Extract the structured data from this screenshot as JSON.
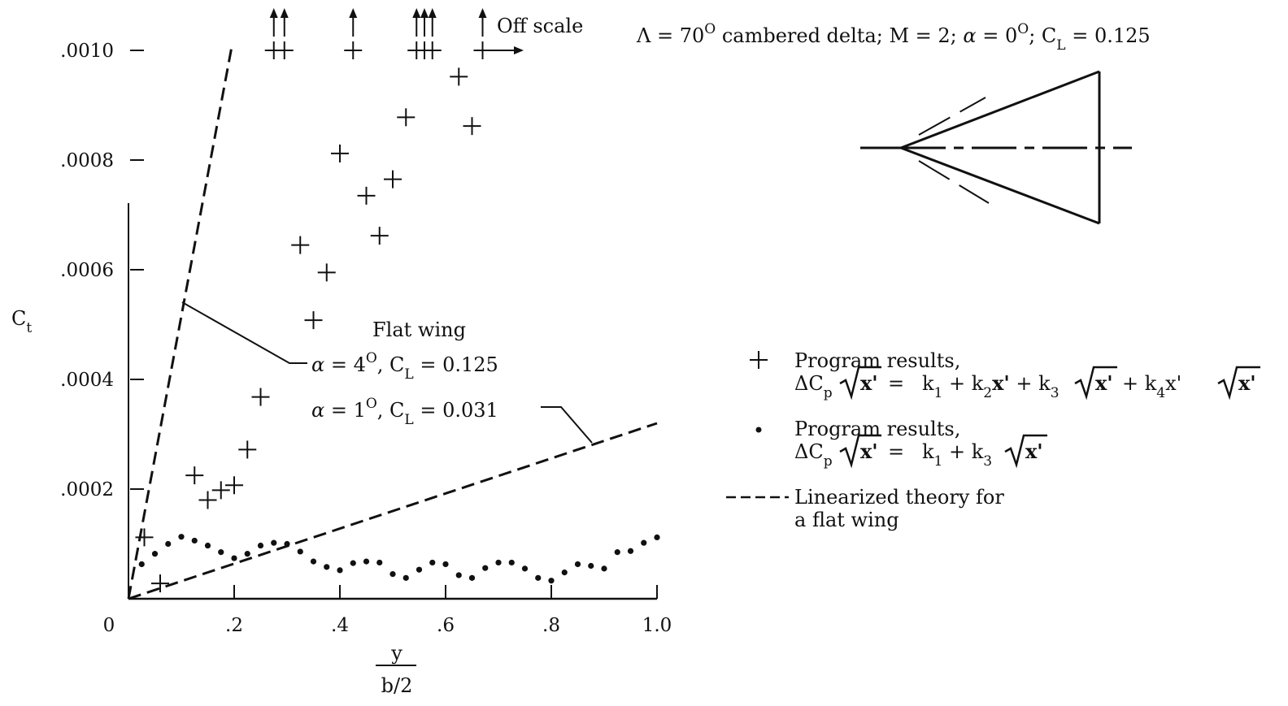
{
  "chart_data": {
    "type": "scatter",
    "title": "Λ = 70° cambered delta;  M = 2;  α = 0°;  C_L = 0.125",
    "title_parts": {
      "sweep": "Λ = 70",
      "sweep_sup": "O",
      "sweep_rest": " cambered delta;  M = 2;  ",
      "alpha": "α",
      "alpha_val": " = 0",
      "alpha_sup": "O",
      "cl": ";  C",
      "cl_sub": "L",
      "cl_val": " = 0.125"
    },
    "xlabel": {
      "num": "y",
      "den": "b/2"
    },
    "ylabel": {
      "main": "C",
      "sub": "t"
    },
    "xlim": [
      0,
      1.0
    ],
    "ylim": [
      0,
      0.001
    ],
    "x_ticks": [
      {
        "v": 0,
        "label": "0"
      },
      {
        "v": 0.2,
        "label": ".2"
      },
      {
        "v": 0.4,
        "label": ".4"
      },
      {
        "v": 0.6,
        "label": ".6"
      },
      {
        "v": 0.8,
        "label": ".8"
      },
      {
        "v": 1.0,
        "label": "1.0"
      }
    ],
    "y_ticks": [
      {
        "v": 0.0002,
        "label": ".0002"
      },
      {
        "v": 0.0004,
        "label": ".0004"
      },
      {
        "v": 0.0006,
        "label": ".0006"
      },
      {
        "v": 0.0008,
        "label": ".0008"
      },
      {
        "v": 0.001,
        "label": ".0010"
      }
    ],
    "off_scale_label": "Off scale",
    "off_scale_x": [
      0.275,
      0.295,
      0.425,
      0.545,
      0.56,
      0.575,
      0.67
    ],
    "series": [
      {
        "name": "Program results, ΔCp√x' = k1 + k2x' + k3√x' + k4x'√x'",
        "marker": "plus",
        "points": [
          [
            0.03,
            0.000112
          ],
          [
            0.06,
            2.8e-05
          ],
          [
            0.125,
            0.000225
          ],
          [
            0.15,
            0.00018
          ],
          [
            0.175,
            0.000198
          ],
          [
            0.2,
            0.000207
          ],
          [
            0.225,
            0.000272
          ],
          [
            0.25,
            0.000368
          ],
          [
            0.35,
            0.000508
          ],
          [
            0.375,
            0.000595
          ],
          [
            0.325,
            0.000645
          ],
          [
            0.4,
            0.000812
          ],
          [
            0.45,
            0.000735
          ],
          [
            0.475,
            0.000662
          ],
          [
            0.5,
            0.000765
          ],
          [
            0.525,
            0.000878
          ],
          [
            0.625,
            0.000952
          ],
          [
            0.65,
            0.000862
          ],
          [
            0.275,
            0.001
          ],
          [
            0.295,
            0.001
          ],
          [
            0.425,
            0.001
          ],
          [
            0.545,
            0.001
          ],
          [
            0.56,
            0.001
          ],
          [
            0.575,
            0.001
          ],
          [
            0.67,
            0.001
          ]
        ]
      },
      {
        "name": "Program results, ΔCp√x' = k1 + k3√x'",
        "marker": "dot",
        "points": [
          [
            0.025,
            6.3e-05
          ],
          [
            0.05,
            8.2e-05
          ],
          [
            0.075,
            0.0001
          ],
          [
            0.1,
            0.000113
          ],
          [
            0.125,
            0.000106
          ],
          [
            0.15,
            9.7e-05
          ],
          [
            0.175,
            8.5e-05
          ],
          [
            0.2,
            7.4e-05
          ],
          [
            0.225,
            8.2e-05
          ],
          [
            0.25,
            9.7e-05
          ],
          [
            0.275,
            0.000102
          ],
          [
            0.3,
            0.0001
          ],
          [
            0.325,
            8.6e-05
          ],
          [
            0.35,
            6.8e-05
          ],
          [
            0.375,
            5.8e-05
          ],
          [
            0.4,
            5.2e-05
          ],
          [
            0.425,
            6.5e-05
          ],
          [
            0.45,
            6.8e-05
          ],
          [
            0.475,
            6.6e-05
          ],
          [
            0.5,
            4.5e-05
          ],
          [
            0.525,
            3.8e-05
          ],
          [
            0.55,
            5.3e-05
          ],
          [
            0.575,
            6.6e-05
          ],
          [
            0.6,
            6.3e-05
          ],
          [
            0.625,
            4.3e-05
          ],
          [
            0.65,
            3.8e-05
          ],
          [
            0.675,
            5.6e-05
          ],
          [
            0.7,
            6.6e-05
          ],
          [
            0.725,
            6.6e-05
          ],
          [
            0.75,
            5.5e-05
          ],
          [
            0.775,
            3.8e-05
          ],
          [
            0.8,
            3.3e-05
          ],
          [
            0.825,
            4.8e-05
          ],
          [
            0.85,
            6.3e-05
          ],
          [
            0.875,
            6e-05
          ],
          [
            0.9,
            5.5e-05
          ],
          [
            0.925,
            8.5e-05
          ],
          [
            0.95,
            8.7e-05
          ],
          [
            0.975,
            0.000102
          ],
          [
            1.0,
            0.000112
          ]
        ]
      },
      {
        "name": "Linearized theory for a flat wing (α = 4°, C_L = 0.125)",
        "marker": "dashed-line",
        "points": [
          [
            0,
            0
          ],
          [
            0.196,
            0.00101
          ]
        ]
      },
      {
        "name": "Linearized theory for a flat wing (α = 1°, C_L = 0.031)",
        "marker": "dashed-line",
        "points": [
          [
            0,
            0
          ],
          [
            1.0,
            0.00032
          ]
        ]
      }
    ],
    "annotations": {
      "flat_wing": "Flat wing",
      "alpha4": {
        "alpha": "α",
        "val": " = 4",
        "sup": "O",
        "cl": ",  C",
        "sub": "L",
        "cl_val": " = 0.125"
      },
      "alpha1": {
        "alpha": "α",
        "val": " = 1",
        "sup": "O",
        "cl": ",  C",
        "sub": "L",
        "cl_val": " = 0.031"
      }
    },
    "legend": {
      "placement": "right",
      "items": [
        {
          "marker": "plus",
          "line1": "Program results,",
          "eq": "k1k2k3k4"
        },
        {
          "marker": "dot",
          "line1": "Program results,",
          "eq": "k1k3"
        },
        {
          "marker": "dashed-line",
          "line1": "Linearized theory for",
          "line2": "a flat wing"
        }
      ],
      "eq_text": {
        "dcp": "ΔC",
        "p": "p",
        "x": "x'",
        "eq": " = ",
        "k": "k",
        "plus": " + ",
        "one": "1",
        "two": "2",
        "three": "3",
        "four": "4"
      }
    }
  }
}
